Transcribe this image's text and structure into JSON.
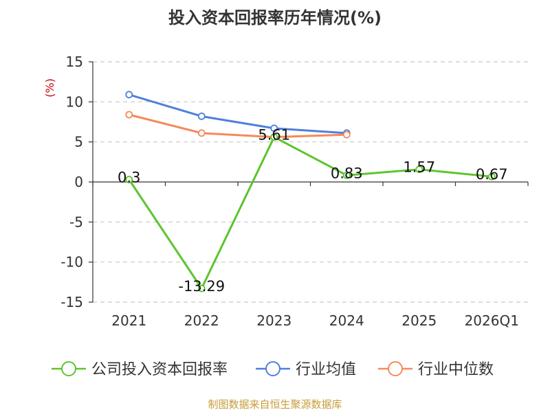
{
  "chart_data": {
    "type": "line",
    "title": "投入资本回报率历年情况(%)",
    "ylabel": "(%)",
    "categories": [
      "2021",
      "2022",
      "2023",
      "2024",
      "2025",
      "2026Q1"
    ],
    "yticks": [
      "15",
      "10",
      "5",
      "0",
      "-5",
      "-10",
      "-15"
    ],
    "ylim": [
      -15,
      15
    ],
    "grid": true,
    "legend_position": "bottom",
    "series": [
      {
        "name": "公司投入资本回报率",
        "color": "#5cc42d",
        "values": [
          0.3,
          -13.29,
          5.61,
          0.83,
          1.57,
          0.67
        ],
        "labels": [
          "0.3",
          "-13.29",
          "5.61",
          "0.83",
          "1.57",
          "0.67"
        ]
      },
      {
        "name": "行业均值",
        "color": "#4f7fdc",
        "values": [
          10.9,
          8.2,
          6.7,
          6.1,
          null,
          null
        ]
      },
      {
        "name": "行业中位数",
        "color": "#f5895a",
        "values": [
          8.4,
          6.1,
          5.6,
          5.9,
          null,
          null
        ]
      }
    ],
    "source": "制图数据来自恒生聚源数据库"
  }
}
